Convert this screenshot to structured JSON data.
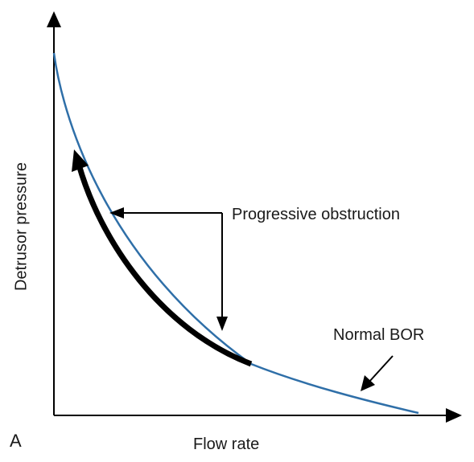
{
  "panel_letter": "A",
  "x_axis_label": "Flow rate",
  "y_axis_label": "Detrusor pressure",
  "annotations": {
    "progressive": "Progressive obstruction",
    "normal": "Normal BOR"
  },
  "colors": {
    "curve": "#2f6fa8",
    "highlight": "#000000",
    "axis": "#000000",
    "arrow": "#000000"
  }
}
